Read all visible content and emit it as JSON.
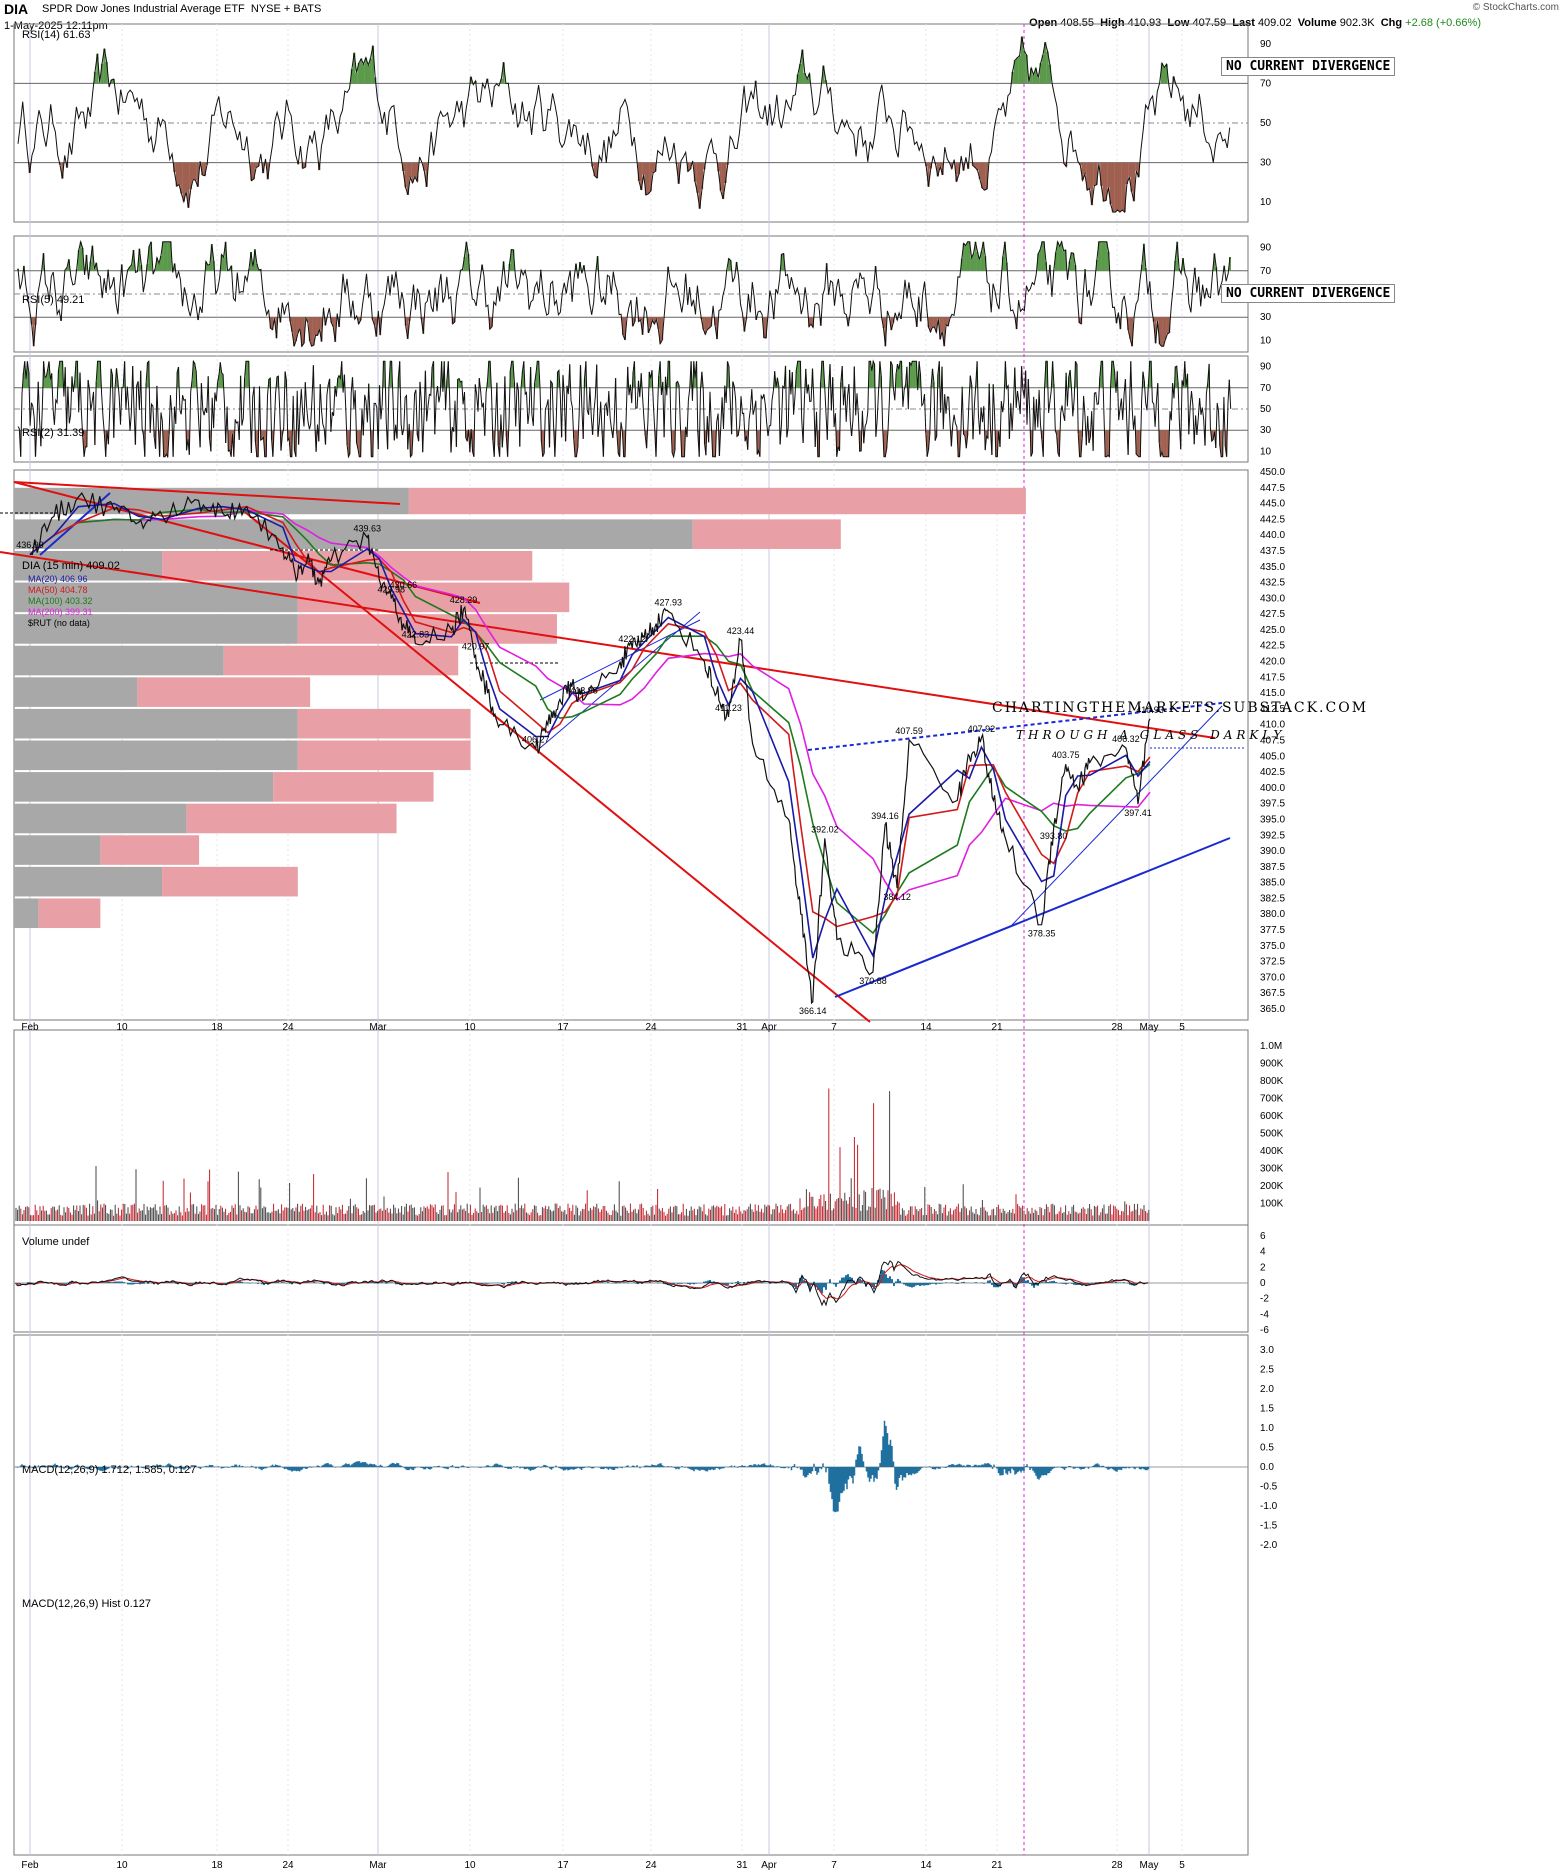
{
  "header": {
    "symbol": "DIA",
    "name": "SPDR Dow Jones Industrial Average ETF",
    "exchange": "NYSE + BATS",
    "date": "1-May-2025 12:11pm",
    "open_label": "Open",
    "open": "408.55",
    "high_label": "High",
    "high": "410.93",
    "low_label": "Low",
    "low": "407.59",
    "last_label": "Last",
    "last": "409.02",
    "volume_label": "Volume",
    "volume": "902.3K",
    "chg_label": "Chg",
    "chg": "+2.68 (+0.66%)",
    "logo": "© StockCharts.com"
  },
  "panels": {
    "rsi14": {
      "label": "RSI(14) 61.63",
      "note": "NO CURRENT DIVERGENCE"
    },
    "rsi5": {
      "label": "RSI(5) 49.21",
      "note": "NO CURRENT DIVERGENCE"
    },
    "rsi2": {
      "label": "RSI(2) 31.39"
    },
    "price": {
      "label": "DIA (15 min) 409.02",
      "legend": [
        "MA(20) 406.96",
        "MA(50) 404.78",
        "MA(100) 403.32",
        "MA(200) 399.31",
        "$RUT (no data)"
      ],
      "brand1": "CHARTINGTHEMARKETS.SUBSTACK.COM",
      "brand2": "THROUGH A GLASS DARKLY"
    },
    "volume": {
      "label": "Volume undef"
    },
    "macd": {
      "label": "MACD(12,26,9) 1.712, 1.585, 0.127"
    },
    "hist": {
      "label": "MACD(12,26,9) Hist 0.127"
    }
  },
  "x_labels": [
    "Feb",
    "10",
    "18",
    "24",
    "Mar",
    "10",
    "17",
    "24",
    "31",
    "Apr",
    "7",
    "14",
    "21",
    "28",
    "May",
    "5"
  ],
  "colors": {
    "ma20": "#1a1aa6",
    "ma50": "#d11a1a",
    "ma100": "#1e7a1e",
    "ma200": "#e020e0",
    "trend_red": "#e01010",
    "trend_blue": "#1a2ad0",
    "vbp_red": "#e8a0a6",
    "vbp_gray": "#a8a8a8",
    "up_fill": "#5a9a4a",
    "down_fill": "#a06050",
    "hist": "#1f6f9f"
  },
  "chart_data": {
    "type": "line",
    "title": "DIA (15 min)",
    "x_range": [
      "2025-02-03",
      "2025-05-07"
    ],
    "ylim": [
      365.0,
      450.0
    ],
    "y_ticks": [
      "450.0",
      "447.5",
      "445.0",
      "442.5",
      "440.0",
      "437.5",
      "435.0",
      "432.5",
      "430.0",
      "427.5",
      "425.0",
      "422.5",
      "420.0",
      "417.5",
      "415.0",
      "412.5",
      "410.0",
      "407.5",
      "405.0",
      "402.5",
      "400.0",
      "397.5",
      "395.0",
      "392.5",
      "390.0",
      "387.5",
      "385.0",
      "382.5",
      "380.0",
      "377.5",
      "375.0",
      "372.5",
      "370.0",
      "367.5",
      "365.0"
    ],
    "series": [
      {
        "name": "DIA",
        "points": [
          [
            "2025-02-03",
            436.99
          ],
          [
            "2025-02-05",
            443
          ],
          [
            "2025-02-07",
            446
          ],
          [
            "2025-02-10",
            444
          ],
          [
            "2025-02-12",
            442
          ],
          [
            "2025-02-14",
            443
          ],
          [
            "2025-02-17",
            445.5
          ],
          [
            "2025-02-19",
            443.5
          ],
          [
            "2025-02-21",
            444.5
          ],
          [
            "2025-02-24",
            438
          ],
          [
            "2025-02-25",
            434
          ],
          [
            "2025-02-26",
            436
          ],
          [
            "2025-02-27",
            432.5
          ],
          [
            "2025-02-28",
            436
          ],
          [
            "2025-03-03",
            439.63
          ],
          [
            "2025-03-04",
            433
          ],
          [
            "2025-03-05",
            430
          ],
          [
            "2025-03-06",
            426
          ],
          [
            "2025-03-07",
            422.83
          ],
          [
            "2025-03-10",
            425
          ],
          [
            "2025-03-11",
            428.29
          ],
          [
            "2025-03-12",
            420.97
          ],
          [
            "2025-03-13",
            415
          ],
          [
            "2025-03-14",
            410
          ],
          [
            "2025-03-17",
            406.27
          ],
          [
            "2025-03-18",
            410
          ],
          [
            "2025-03-19",
            414
          ],
          [
            "2025-03-20",
            416
          ],
          [
            "2025-03-21",
            413.98
          ],
          [
            "2025-03-24",
            420
          ],
          [
            "2025-03-25",
            422.12
          ],
          [
            "2025-03-26",
            424
          ],
          [
            "2025-03-27",
            426
          ],
          [
            "2025-03-28",
            427.93
          ],
          [
            "2025-03-31",
            420
          ],
          [
            "2025-04-01",
            415
          ],
          [
            "2025-04-02",
            411.23
          ],
          [
            "2025-04-03",
            423.44
          ],
          [
            "2025-04-04",
            407
          ],
          [
            "2025-04-07",
            395
          ],
          [
            "2025-04-08",
            380
          ],
          [
            "2025-04-09",
            366.14
          ],
          [
            "2025-04-10",
            392.02
          ],
          [
            "2025-04-11",
            376
          ],
          [
            "2025-04-14",
            370.88
          ],
          [
            "2025-04-15",
            394.16
          ],
          [
            "2025-04-16",
            384.12
          ],
          [
            "2025-04-17",
            407.59
          ],
          [
            "2025-04-21",
            398
          ],
          [
            "2025-04-22",
            405
          ],
          [
            "2025-04-23",
            407.92
          ],
          [
            "2025-04-24",
            398
          ],
          [
            "2025-04-25",
            392
          ],
          [
            "2025-04-28",
            378.35
          ],
          [
            "2025-04-29",
            393.8
          ],
          [
            "2025-04-30",
            403.75
          ],
          [
            "2025-05-01",
            400
          ],
          [
            "2025-05-02",
            404
          ],
          [
            "2025-05-05",
            406.32
          ],
          [
            "2025-05-06",
            397.41
          ],
          [
            "2025-05-07",
            410.93
          ]
        ]
      }
    ],
    "annotations": [
      "436.99",
      "439.63",
      "430.66",
      "428.29",
      "429.98",
      "422.83",
      "420.97",
      "406.27",
      "422.12",
      "427.93",
      "413.98",
      "423.44",
      "411.23",
      "407.59",
      "407.92",
      "392.02",
      "394.16",
      "384.12",
      "366.14",
      "370.88",
      "403.75",
      "393.80",
      "378.35",
      "406.32",
      "397.41",
      "410.93"
    ],
    "rsi_ticks": [
      "90",
      "70",
      "50",
      "30",
      "10"
    ],
    "volume_ticks": [
      "1.0M",
      "900K",
      "800K",
      "700K",
      "600K",
      "500K",
      "400K",
      "300K",
      "200K",
      "100K"
    ],
    "macd_ticks": [
      "6",
      "4",
      "2",
      "0",
      "-2",
      "-4",
      "-6"
    ],
    "hist_ticks": [
      "3.0",
      "2.5",
      "2.0",
      "1.5",
      "1.0",
      "0.5",
      "0.0",
      "-0.5",
      "-1.0",
      "-1.5",
      "-2.0"
    ]
  }
}
